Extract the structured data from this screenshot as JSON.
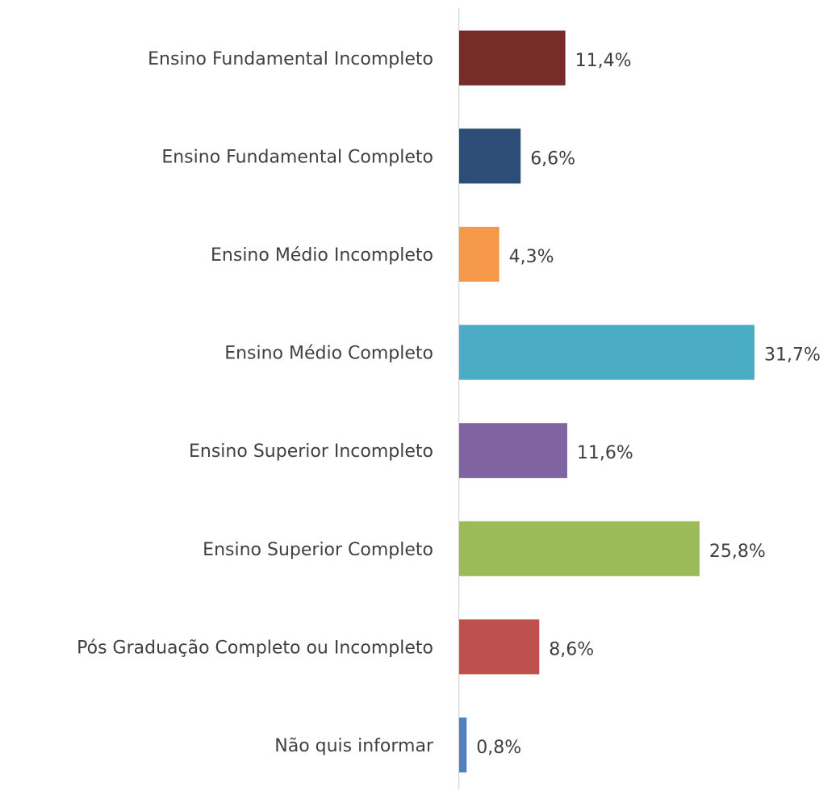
{
  "chart_data": {
    "type": "bar",
    "orientation": "horizontal",
    "categories": [
      "Ensino Fundamental Incompleto",
      "Ensino Fundamental Completo",
      "Ensino Médio Incompleto",
      "Ensino Médio Completo",
      "Ensino Superior Incompleto",
      "Ensino Superior Completo",
      "Pós Graduação Completo ou Incompleto",
      "Não quis informar"
    ],
    "values": [
      11.4,
      6.6,
      4.3,
      31.7,
      11.6,
      25.8,
      8.6,
      0.8
    ],
    "value_labels": [
      "11,4%",
      "6,6%",
      "4,3%",
      "31,7%",
      "11,6%",
      "25,8%",
      "8,6%",
      "0,8%"
    ],
    "colors": [
      "#772c2a",
      "#2c4d75",
      "#f59847",
      "#4bacc6",
      "#8064a2",
      "#9bbb59",
      "#c0504d",
      "#4f81bd"
    ]
  }
}
